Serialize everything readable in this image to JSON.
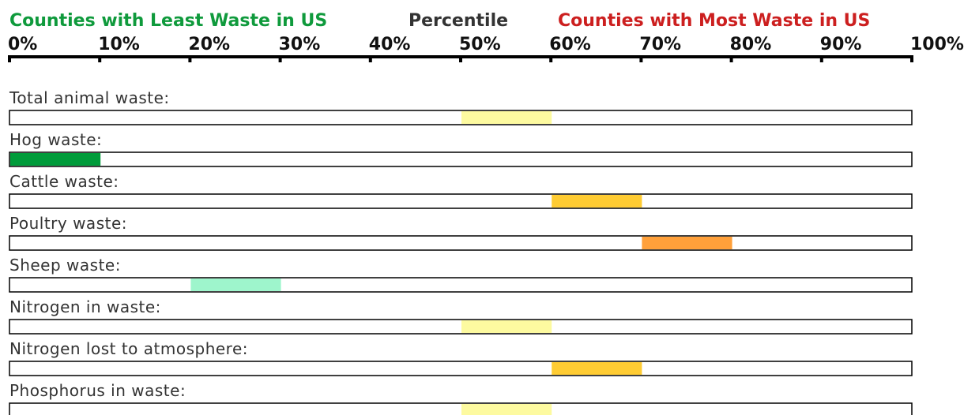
{
  "chart_data": {
    "type": "percentile-band",
    "left_title": "Counties with Least Waste in US",
    "center_title": "Percentile",
    "right_title": "Counties with Most Waste in US",
    "left_title_color": "#0f9a3c",
    "center_title_color": "#333333",
    "right_title_color": "#cc1f1f",
    "xlim": [
      0,
      100
    ],
    "xticks": [
      {
        "value": 0,
        "label": "0%"
      },
      {
        "value": 10,
        "label": "10%"
      },
      {
        "value": 20,
        "label": "20%"
      },
      {
        "value": 30,
        "label": "30%"
      },
      {
        "value": 40,
        "label": "40%"
      },
      {
        "value": 50,
        "label": "50%"
      },
      {
        "value": 60,
        "label": "60%"
      },
      {
        "value": 70,
        "label": "70%"
      },
      {
        "value": 80,
        "label": "80%"
      },
      {
        "value": 90,
        "label": "90%"
      },
      {
        "value": 100,
        "label": "100%"
      }
    ],
    "rows": [
      {
        "label": "Total animal waste:",
        "range": [
          50,
          60
        ],
        "color": "#fdfaa0"
      },
      {
        "label": "Hog waste:",
        "range": [
          0,
          10
        ],
        "color": "#009b3a"
      },
      {
        "label": "Cattle waste:",
        "range": [
          60,
          70
        ],
        "color": "#ffcc33"
      },
      {
        "label": "Poultry waste:",
        "range": [
          70,
          80
        ],
        "color": "#ffa03a"
      },
      {
        "label": "Sheep waste:",
        "range": [
          20,
          30
        ],
        "color": "#9ef5cc"
      },
      {
        "label": "Nitrogen in waste:",
        "range": [
          50,
          60
        ],
        "color": "#fdfaa0"
      },
      {
        "label": "Nitrogen lost to atmosphere:",
        "range": [
          60,
          70
        ],
        "color": "#ffcc33"
      },
      {
        "label": "Phosphorus in waste:",
        "range": [
          50,
          60
        ],
        "color": "#fdfaa0"
      }
    ]
  }
}
